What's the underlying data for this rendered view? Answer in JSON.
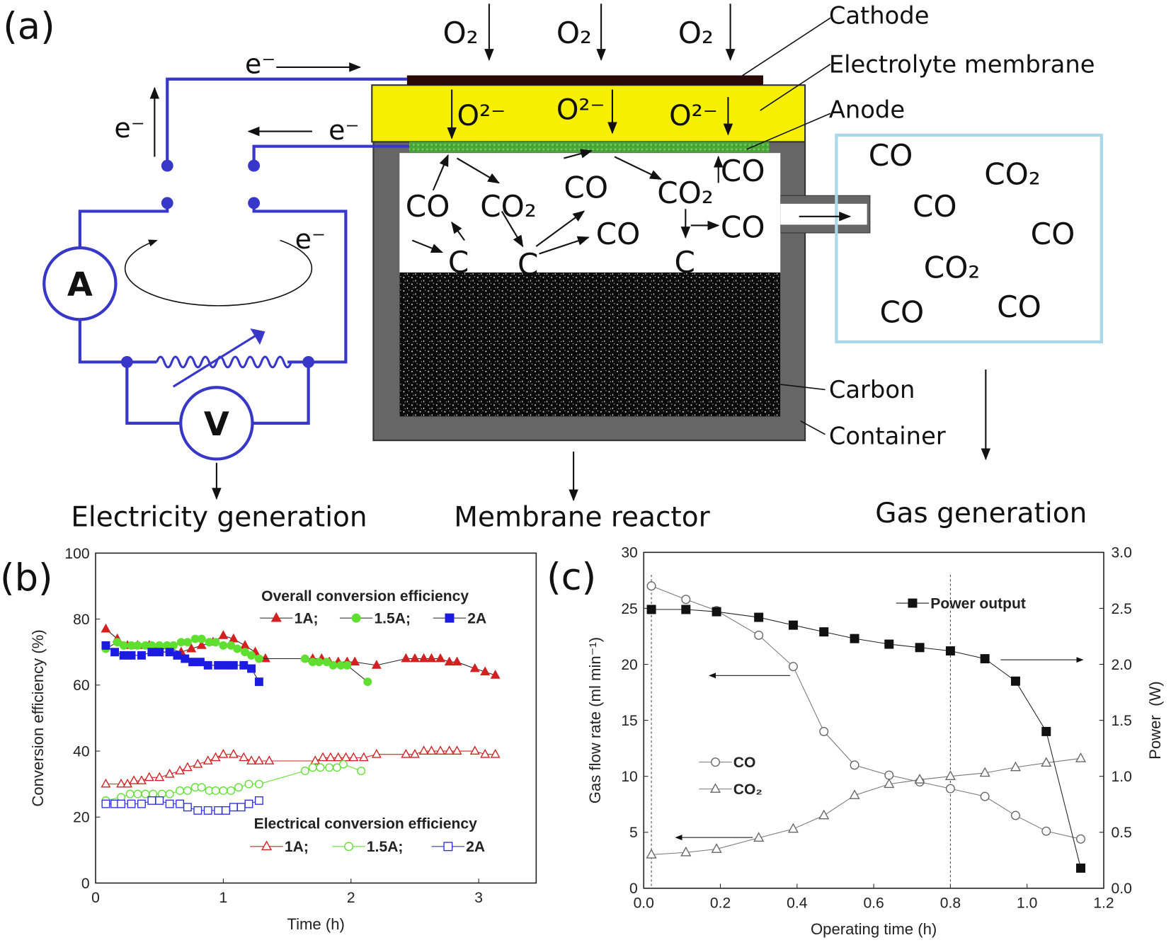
{
  "diagram": {
    "panel_label": "(a)",
    "o2": [
      "O₂",
      "O₂",
      "O₂"
    ],
    "o2_ions": [
      "O²⁻",
      "O²⁻",
      "O²⁻"
    ],
    "electrons": [
      "e⁻",
      "e⁻",
      "e⁻",
      "e⁻"
    ],
    "reactor_species": [
      "CO",
      "CO₂",
      "CO",
      "CO₂",
      "CO",
      "CO",
      "CO",
      "C",
      "C",
      "C"
    ],
    "gas_box": [
      "CO",
      "CO₂",
      "CO",
      "CO",
      "CO₂",
      "CO",
      "CO"
    ],
    "meters": [
      "A",
      "V"
    ],
    "layer_labels": [
      "Cathode",
      "Electrolyte membrane",
      "Anode",
      "Carbon",
      "Container"
    ],
    "outputs": [
      "Electricity generation",
      "Membrane reactor",
      "Gas generation"
    ]
  },
  "chart_data": [
    {
      "type": "scatter",
      "panel_label": "(b)",
      "x_label": "Time (h)",
      "y_label": "Conversion efficiency (%)",
      "xlim": [
        0,
        3.45
      ],
      "xticks": [
        0,
        1,
        2,
        3
      ],
      "ylim": [
        0,
        100
      ],
      "yticks": [
        0,
        20,
        40,
        60,
        80,
        100
      ],
      "grid": false,
      "legend_titles": [
        "Overall conversion efficiency",
        "Electrical conversion efficiency"
      ],
      "series": [
        {
          "name": "1A;",
          "color": "#d42020",
          "marker": "triangle",
          "filled": true,
          "line_color": "#222",
          "x": [
            0.08,
            0.17,
            0.25,
            0.33,
            0.42,
            0.5,
            0.58,
            0.67,
            0.75,
            0.83,
            0.92,
            1.0,
            1.08,
            1.17,
            1.25,
            1.33,
            1.7,
            1.77,
            1.83,
            1.9,
            1.97,
            2.03,
            2.2,
            2.43,
            2.5,
            2.57,
            2.63,
            2.7,
            2.77,
            2.83,
            2.97,
            3.05,
            3.13
          ],
          "values": [
            77,
            74,
            72,
            72,
            72,
            71,
            71,
            70,
            71,
            72,
            73,
            75,
            74,
            72,
            70,
            68,
            68,
            68,
            67,
            67,
            67,
            67,
            66,
            68,
            68,
            68,
            68,
            68,
            67,
            67,
            65,
            64,
            63
          ]
        },
        {
          "name": "1.5A;",
          "color": "#5fe030",
          "marker": "circle",
          "filled": true,
          "line_color": "#222",
          "x": [
            0.08,
            0.17,
            0.22,
            0.28,
            0.33,
            0.39,
            0.44,
            0.5,
            0.56,
            0.61,
            0.67,
            0.72,
            0.78,
            0.83,
            0.89,
            0.94,
            1.0,
            1.06,
            1.11,
            1.17,
            1.22,
            1.28,
            1.64,
            1.7,
            1.75,
            1.81,
            1.86,
            1.92,
            1.97,
            2.13
          ],
          "values": [
            71,
            73,
            72,
            72,
            72,
            72,
            72,
            72,
            72,
            72,
            73,
            73,
            74,
            74,
            73,
            73,
            72,
            72,
            71,
            70,
            69,
            68,
            68,
            67,
            67,
            67,
            66,
            66,
            66,
            61
          ]
        },
        {
          "name": "2A",
          "color": "#1c1ce0",
          "marker": "square",
          "filled": true,
          "line_color": "#222",
          "x": [
            0.08,
            0.15,
            0.22,
            0.28,
            0.36,
            0.44,
            0.5,
            0.58,
            0.64,
            0.7,
            0.76,
            0.82,
            0.88,
            0.96,
            1.02,
            1.08,
            1.16,
            1.22,
            1.28
          ],
          "values": [
            72,
            70,
            69,
            69,
            69,
            70,
            70,
            70,
            69,
            68,
            67,
            67,
            66,
            66,
            66,
            66,
            66,
            65,
            61
          ]
        },
        {
          "name": "1A;",
          "color": "#d42020",
          "marker": "triangle",
          "filled": false,
          "line_color": "#d42020",
          "x": [
            0.08,
            0.2,
            0.25,
            0.3,
            0.36,
            0.42,
            0.5,
            0.58,
            0.66,
            0.72,
            0.8,
            0.88,
            0.94,
            1.0,
            1.08,
            1.16,
            1.22,
            1.28,
            1.36,
            1.72,
            1.78,
            1.84,
            1.9,
            1.96,
            2.02,
            2.1,
            2.2,
            2.43,
            2.5,
            2.57,
            2.63,
            2.7,
            2.77,
            2.83,
            2.97,
            3.05,
            3.13
          ],
          "values": [
            30,
            30,
            30,
            31,
            31,
            32,
            32,
            33,
            34,
            35,
            36,
            37,
            38,
            39,
            39,
            38,
            37,
            37,
            37,
            37,
            38,
            38,
            38,
            38,
            38,
            38,
            39,
            39,
            39,
            40,
            40,
            40,
            40,
            40,
            40,
            39,
            39
          ]
        },
        {
          "name": "1.5A;",
          "color": "#5fe030",
          "marker": "circle",
          "filled": false,
          "line_color": "#5fe030",
          "x": [
            0.08,
            0.2,
            0.27,
            0.33,
            0.39,
            0.45,
            0.52,
            0.58,
            0.66,
            0.72,
            0.78,
            0.83,
            0.89,
            0.94,
            1.0,
            1.06,
            1.12,
            1.2,
            1.28,
            1.64,
            1.7,
            1.76,
            1.83,
            1.89,
            1.94,
            2.08
          ],
          "values": [
            25,
            26,
            27,
            27,
            27,
            27,
            27,
            27,
            28,
            28,
            29,
            29,
            28,
            28,
            28,
            28,
            29,
            30,
            30,
            34,
            35,
            35,
            35,
            35,
            36,
            34
          ]
        },
        {
          "name": "2A",
          "color": "#3030e0",
          "marker": "square",
          "filled": false,
          "line_color": "#3030e0",
          "x": [
            0.08,
            0.15,
            0.2,
            0.28,
            0.36,
            0.44,
            0.5,
            0.58,
            0.66,
            0.72,
            0.8,
            0.88,
            0.96,
            1.02,
            1.08,
            1.14,
            1.2,
            1.28
          ],
          "values": [
            24,
            24,
            24,
            24,
            24,
            25,
            25,
            24,
            24,
            23,
            22,
            22,
            22,
            22,
            23,
            23,
            24,
            25
          ]
        }
      ]
    },
    {
      "type": "line",
      "panel_label": "(c)",
      "x_label": "Operating time (h)",
      "y_label": "Gas flow rate (ml min⁻¹)",
      "y2_label": "Power  (W)",
      "xlim": [
        0,
        1.2
      ],
      "xticks": [
        {
          "value": 0,
          "label": "0.0"
        },
        0.2,
        0.4,
        0.6,
        0.8,
        {
          "value": 1,
          "label": "1.0"
        },
        1.2
      ],
      "ylim": [
        0,
        30
      ],
      "yticks": [
        0,
        5,
        10,
        15,
        20,
        25,
        30
      ],
      "y2lim": [
        0,
        3
      ],
      "y2ticks": [
        {
          "value": 0,
          "label": "0.0"
        },
        0.5,
        {
          "value": 1,
          "label": "1.0"
        },
        1.5,
        {
          "value": 2,
          "label": "2.0"
        },
        2.5,
        {
          "value": 3,
          "label": "3.0"
        }
      ],
      "grid": false,
      "vlines": [
        0.02,
        0.8
      ],
      "x": [
        0.02,
        0.11,
        0.19,
        0.3,
        0.39,
        0.47,
        0.55,
        0.64,
        0.72,
        0.8,
        0.89,
        0.97,
        1.05,
        1.14
      ],
      "series": [
        {
          "name": "CO",
          "color": "#666",
          "marker": "circle",
          "filled": false,
          "line_color": "#777",
          "values": [
            27,
            25.8,
            24.8,
            22.6,
            19.8,
            14,
            11,
            10.1,
            9.5,
            8.9,
            8.2,
            6.5,
            5.1,
            4.4
          ]
        },
        {
          "name": "CO₂",
          "color": "#666",
          "marker": "triangle",
          "filled": false,
          "line_color": "#777",
          "values": [
            3,
            3.2,
            3.5,
            4.5,
            5.3,
            6.5,
            8.3,
            9.3,
            9.7,
            10,
            10.3,
            10.8,
            11.2,
            11.6
          ]
        },
        {
          "name": "Power output",
          "color": "#111",
          "marker": "square",
          "filled": true,
          "line_color": "#222",
          "axis": "y2",
          "values": [
            2.49,
            2.49,
            2.47,
            2.42,
            2.35,
            2.29,
            2.23,
            2.18,
            2.15,
            2.12,
            2.05,
            1.85,
            1.4,
            0.18
          ]
        }
      ]
    }
  ]
}
